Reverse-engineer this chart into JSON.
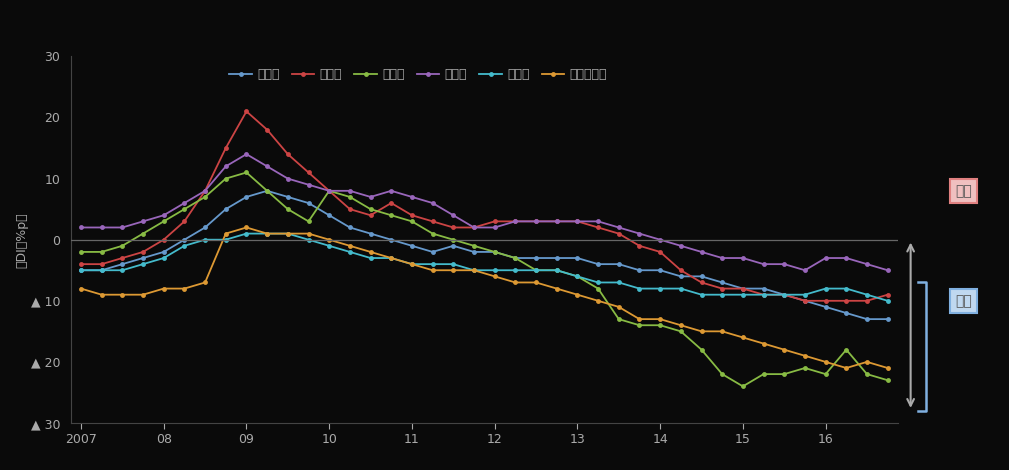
{
  "ylabel": "（DI、%p）",
  "bg_color": "#0a0a0a",
  "plot_bg": "#0a0a0a",
  "text_color": "#aaaaaa",
  "zero_line_color": "#666666",
  "spine_color": "#444444",
  "series": {
    "全産業": {
      "color": "#6699cc",
      "data": [
        -5,
        -5,
        -4,
        -3,
        -2,
        0,
        2,
        5,
        7,
        8,
        7,
        6,
        4,
        2,
        1,
        0,
        -1,
        -2,
        -1,
        -2,
        -2,
        -3,
        -3,
        -3,
        -3,
        -4,
        -4,
        -5,
        -5,
        -6,
        -6,
        -7,
        -8,
        -8,
        -9,
        -10,
        -11,
        -12,
        -13,
        -13
      ]
    },
    "製造業": {
      "color": "#cc4444",
      "data": [
        -4,
        -4,
        -3,
        -2,
        0,
        3,
        8,
        15,
        21,
        18,
        14,
        11,
        8,
        5,
        4,
        6,
        4,
        3,
        2,
        2,
        3,
        3,
        3,
        3,
        3,
        2,
        1,
        -1,
        -2,
        -5,
        -7,
        -8,
        -8,
        -9,
        -9,
        -10,
        -10,
        -10,
        -10,
        -9
      ]
    },
    "建設業": {
      "color": "#88bb44",
      "data": [
        -2,
        -2,
        -1,
        1,
        3,
        5,
        7,
        10,
        11,
        8,
        5,
        3,
        8,
        7,
        5,
        4,
        3,
        1,
        0,
        -1,
        -2,
        -3,
        -5,
        -5,
        -6,
        -8,
        -13,
        -14,
        -14,
        -15,
        -18,
        -22,
        -24,
        -22,
        -22,
        -21,
        -22,
        -18,
        -22,
        -23
      ]
    },
    "卸売業": {
      "color": "#9966bb",
      "data": [
        2,
        2,
        2,
        3,
        4,
        6,
        8,
        12,
        14,
        12,
        10,
        9,
        8,
        8,
        7,
        8,
        7,
        6,
        4,
        2,
        2,
        3,
        3,
        3,
        3,
        3,
        2,
        1,
        0,
        -1,
        -2,
        -3,
        -3,
        -4,
        -4,
        -5,
        -3,
        -3,
        -4,
        -5
      ]
    },
    "小売業": {
      "color": "#44bbcc",
      "data": [
        -5,
        -5,
        -5,
        -4,
        -3,
        -1,
        0,
        0,
        1,
        1,
        1,
        0,
        -1,
        -2,
        -3,
        -3,
        -4,
        -4,
        -4,
        -5,
        -5,
        -5,
        -5,
        -5,
        -6,
        -7,
        -7,
        -8,
        -8,
        -8,
        -9,
        -9,
        -9,
        -9,
        -9,
        -9,
        -8,
        -8,
        -9,
        -10
      ]
    },
    "サービス業": {
      "color": "#dd9933",
      "data": [
        -8,
        -9,
        -9,
        -9,
        -8,
        -8,
        -7,
        1,
        2,
        1,
        1,
        1,
        0,
        -1,
        -2,
        -3,
        -4,
        -5,
        -5,
        -5,
        -6,
        -7,
        -7,
        -8,
        -9,
        -10,
        -11,
        -13,
        -13,
        -14,
        -15,
        -15,
        -16,
        -17,
        -18,
        -19,
        -20,
        -21,
        -20,
        -21
      ]
    }
  },
  "xlim": [
    -0.5,
    39.5
  ],
  "ylim": [
    -30,
    30
  ],
  "yticks": [
    30,
    20,
    10,
    0,
    -10,
    -20,
    -30
  ],
  "xtick_labels": [
    "2007",
    "08",
    "09",
    "10",
    "11",
    "12",
    "13",
    "14",
    "15",
    "16"
  ],
  "xtick_positions": [
    0,
    4,
    8,
    12,
    16,
    20,
    24,
    28,
    32,
    36
  ],
  "kajou_box_color": "#e08080",
  "kajou_fill": "#f0c0c0",
  "fusoku_box_color": "#80b0e0",
  "fusoku_fill": "#c0d8f0",
  "arrow_color": "#aaaaaa"
}
